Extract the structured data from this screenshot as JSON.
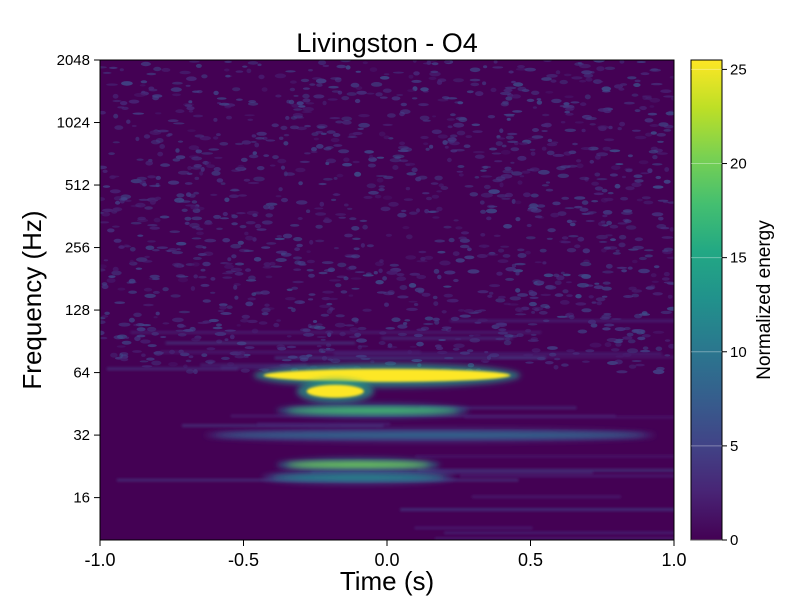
{
  "chart_data": {
    "type": "heatmap",
    "title": "Livingston - O4",
    "xlabel": "Time (s)",
    "ylabel": "Frequency (Hz)",
    "colorbar_label": "Normalized energy",
    "colormap": "viridis",
    "xlim": [
      -1.0,
      1.0
    ],
    "ylim": [
      10,
      2048
    ],
    "yscale": "log2",
    "clim": [
      0,
      25.5
    ],
    "x_ticks": [
      -1.0,
      -0.5,
      0.0,
      0.5,
      1.0
    ],
    "x_tick_labels": [
      "-1.0",
      "-0.5",
      "0.0",
      "0.5",
      "1.0"
    ],
    "y_ticks": [
      16,
      32,
      64,
      128,
      256,
      512,
      1024,
      2048
    ],
    "y_tick_labels": [
      "16",
      "32",
      "64",
      "128",
      "256",
      "512",
      "1024",
      "2048"
    ],
    "colorbar_ticks": [
      0,
      5,
      10,
      15,
      20,
      25
    ],
    "colorbar_tick_labels": [
      "0",
      "5",
      "10",
      "15",
      "20",
      "25"
    ],
    "background_energy": 1.5,
    "features": [
      {
        "label": "saturated chirp band",
        "t_start": -0.43,
        "t_end": 0.43,
        "f_center": 62,
        "energy": 25.5
      },
      {
        "label": "upper lobe",
        "t_start": -0.28,
        "t_end": -0.08,
        "f_center": 52,
        "energy": 25.5
      },
      {
        "label": "band",
        "t_start": -0.35,
        "t_end": 0.25,
        "f_center": 42,
        "energy": 18
      },
      {
        "label": "band",
        "t_start": -0.6,
        "t_end": 0.9,
        "f_center": 32,
        "energy": 9
      },
      {
        "label": "band",
        "t_start": -0.35,
        "t_end": 0.15,
        "f_center": 23,
        "energy": 20
      },
      {
        "label": "band",
        "t_start": -0.4,
        "t_end": 0.2,
        "f_center": 20,
        "energy": 12
      }
    ]
  }
}
